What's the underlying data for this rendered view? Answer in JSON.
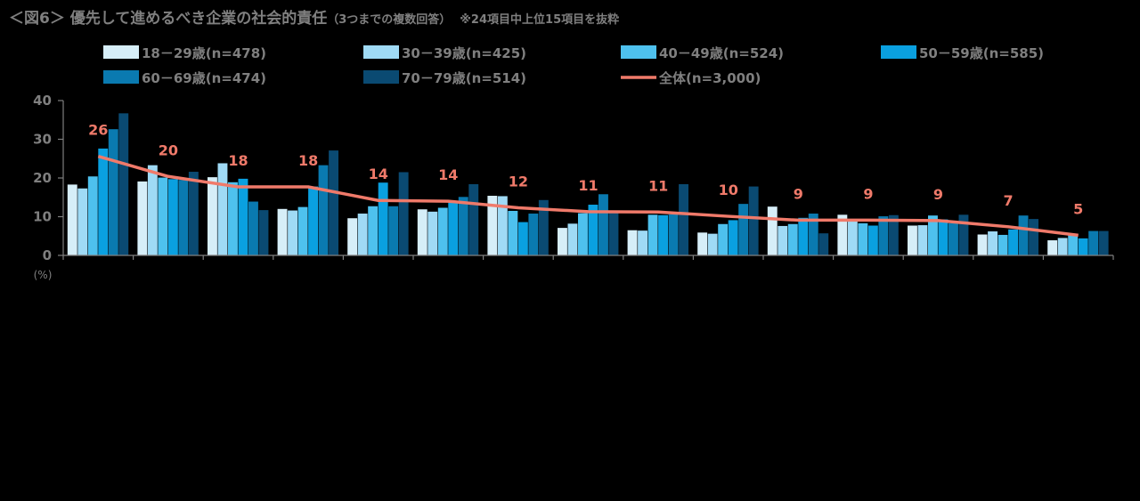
{
  "title": {
    "main": "＜図6＞ 優先して進めるべき企業の社会的責任",
    "sub": "（3つまでの複数回答）",
    "note": "※24項目中上位15項目を抜粋"
  },
  "colors": {
    "series": [
      "#d6eef8",
      "#9fdaf5",
      "#4ec1ee",
      "#0aa0e0",
      "#0a7ab0",
      "#0a4a72"
    ],
    "total_line": "#f07a6a",
    "axis": "#7f7f7f"
  },
  "chart_data": {
    "type": "bar",
    "ylim": [
      0,
      40
    ],
    "yticks": [
      0,
      10,
      20,
      30,
      40
    ],
    "yunit": "(%)",
    "categories": [
      "",
      "",
      "",
      "",
      "",
      "",
      "",
      "",
      "",
      "",
      "",
      "",
      "",
      "",
      ""
    ],
    "series": [
      {
        "name": "18－29歳(n=478)",
        "values": [
          18.3,
          19.1,
          20.2,
          12.0,
          9.6,
          11.9,
          15.4,
          7.1,
          6.5,
          5.9,
          12.6,
          10.5,
          7.7,
          5.4,
          3.9
        ]
      },
      {
        "name": "30－39歳(n=425)",
        "values": [
          17.3,
          23.3,
          23.8,
          11.6,
          10.8,
          11.3,
          15.3,
          8.2,
          6.4,
          5.6,
          7.6,
          9.4,
          7.8,
          6.2,
          4.5
        ]
      },
      {
        "name": "40－49歳(n=524)",
        "values": [
          20.4,
          20.1,
          18.9,
          12.5,
          12.7,
          12.3,
          11.5,
          10.9,
          10.5,
          8.1,
          8.1,
          8.3,
          10.3,
          5.3,
          5.2
        ]
      },
      {
        "name": "50－59歳(n=585)",
        "values": [
          27.6,
          19.7,
          19.8,
          17.8,
          18.8,
          13.7,
          8.6,
          13.1,
          10.4,
          9.1,
          9.7,
          7.7,
          9.3,
          6.7,
          4.4
        ]
      },
      {
        "name": "60－69歳(n=474)",
        "values": [
          32.6,
          19.5,
          13.9,
          23.3,
          12.7,
          15.1,
          10.8,
          15.8,
          10.6,
          13.3,
          10.8,
          10.1,
          8.3,
          10.3,
          6.3
        ]
      },
      {
        "name": "70－79歳(n=514)",
        "values": [
          36.7,
          21.6,
          11.7,
          27.1,
          21.5,
          18.4,
          14.3,
          11.0,
          18.4,
          17.8,
          5.7,
          10.4,
          10.5,
          9.4,
          6.3
        ]
      }
    ],
    "total_line": {
      "name": "全体(n=3,000)",
      "values": [
        25.6,
        20.4,
        17.7,
        17.7,
        14.2,
        14.0,
        12.3,
        11.3,
        11.2,
        10.1,
        9.1,
        9.1,
        9.0,
        7.4,
        5.2
      ],
      "labels": [
        "26",
        "20",
        "18",
        "18",
        "14",
        "14",
        "12",
        "11",
        "11",
        "10",
        "9",
        "9",
        "9",
        "7",
        "5"
      ]
    },
    "legend": {
      "position": "top"
    }
  }
}
